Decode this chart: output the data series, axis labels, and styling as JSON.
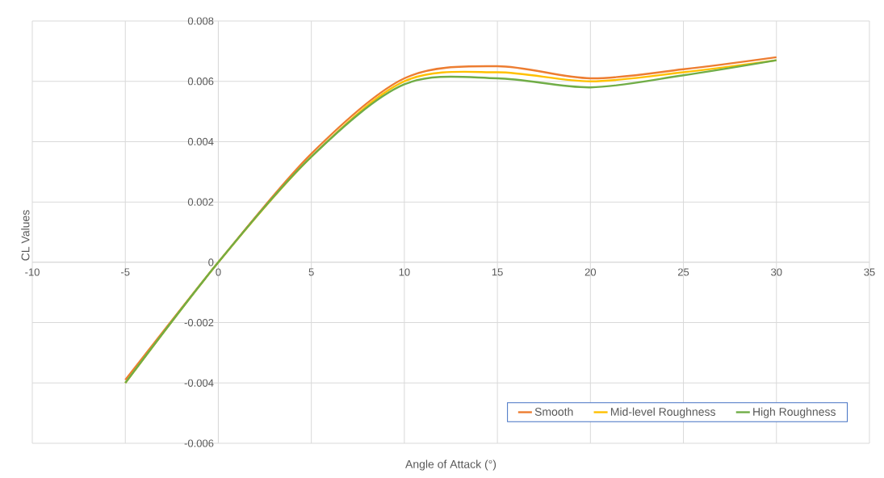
{
  "chart_data": {
    "type": "line",
    "xlabel": "Angle of Attack (°)",
    "ylabel": "CL Values",
    "x": [
      -5,
      0,
      5,
      10,
      15,
      20,
      25,
      30
    ],
    "series": [
      {
        "name": "Smooth",
        "color": "#ed7d31",
        "values": [
          -0.0039,
          0,
          0.0036,
          0.0061,
          0.0065,
          0.0061,
          0.0064,
          0.0068
        ]
      },
      {
        "name": "Mid-level Roughness",
        "color": "#ffc000",
        "values": [
          -0.004,
          0,
          0.0035,
          0.006,
          0.0063,
          0.006,
          0.0063,
          0.0067
        ]
      },
      {
        "name": "High Roughness",
        "color": "#70ad47",
        "values": [
          -0.004,
          0,
          0.0035,
          0.0059,
          0.0061,
          0.0058,
          0.0062,
          0.0067
        ]
      }
    ],
    "xlim": [
      -10,
      35
    ],
    "ylim": [
      -0.006,
      0.008
    ],
    "xticks": [
      -10,
      -5,
      0,
      5,
      10,
      15,
      20,
      25,
      30,
      35
    ],
    "yticks": [
      -0.006,
      -0.004,
      -0.002,
      0,
      0.002,
      0.004,
      0.006,
      0.008
    ],
    "grid": true,
    "legend": "bottom right",
    "marker": "none",
    "line_style": "solid"
  }
}
